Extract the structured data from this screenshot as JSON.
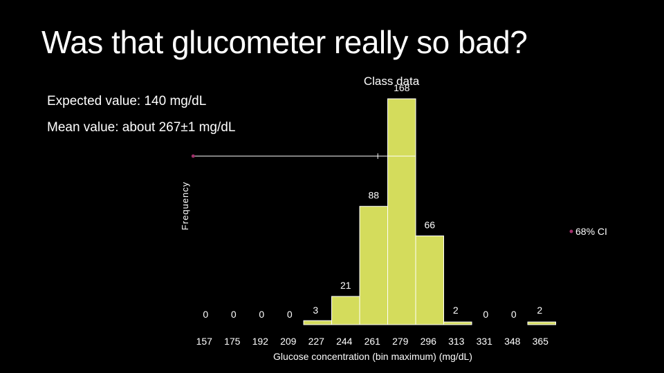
{
  "slide": {
    "title": "Was that glucometer really so bad?",
    "line1": "Expected value: 140 mg/dL",
    "line2": "Mean value: about 267±1 mg/dL"
  },
  "colors": {
    "bar_fill": "#d4dc5c",
    "bar_stroke": "#ffffff",
    "background": "#000000",
    "marker": "#a0306a",
    "text": "#ffffff"
  },
  "chart_data": {
    "type": "bar",
    "title": "Class data",
    "xlabel": "Glucose concentration (bin maximum)  (mg/dL)",
    "ylabel": "Frequency",
    "categories": [
      "157",
      "175",
      "192",
      "209",
      "227",
      "244",
      "261",
      "279",
      "296",
      "313",
      "331",
      "348",
      "365"
    ],
    "series": [
      {
        "values": [
          0,
          0,
          0,
          0,
          3,
          21,
          88,
          168,
          66,
          2,
          0,
          0,
          2
        ]
      }
    ],
    "ylim": [
      0,
      168
    ],
    "grid": false,
    "ci_legend": "68% CI",
    "expected_marker_value": 140,
    "ci_bar": {
      "low": 255,
      "center": 267,
      "high": 279
    }
  }
}
